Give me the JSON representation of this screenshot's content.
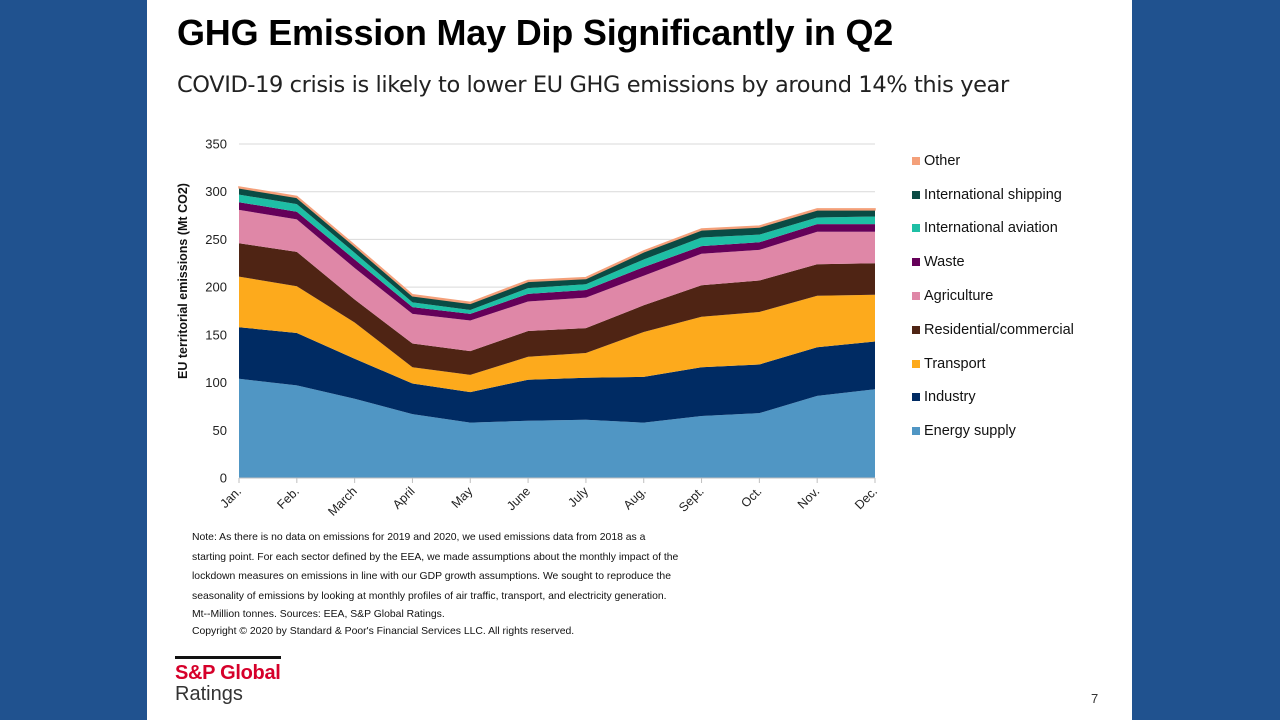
{
  "slide": {
    "title": "GHG Emission May Dip Significantly in Q2",
    "subtitle": "COVID-19 crisis is likely to lower EU GHG emissions by around 14% this year",
    "notes": [
      "Note: As there is no data on emissions for 2019 and 2020, we used emissions data from 2018 as a",
      "starting point. For each sector defined by the EEA, we made assumptions about the monthly impact of the",
      "lockdown measures on emissions in line with our GDP growth assumptions. We sought to reproduce the",
      "seasonality of emissions by looking at monthly profiles of air traffic, transport, and electricity generation.",
      "Mt--Million tonnes. Sources: EEA, S&P Global Ratings.",
      "Copyright © 2020 by Standard & Poor's Financial Services LLC. All rights reserved."
    ],
    "logo_line1": "S&P Global",
    "logo_line2": "Ratings",
    "page_number": "7",
    "background_color": "#20528f",
    "logo_color": "#d6002a"
  },
  "chart_data": {
    "type": "area",
    "stacked": true,
    "title": "",
    "xlabel": "",
    "ylabel": "EU territorial emissions (Mt CO2)",
    "ylim": [
      0,
      350
    ],
    "yticks": [
      0,
      50,
      100,
      150,
      200,
      250,
      300,
      350
    ],
    "grid": true,
    "legend_position": "right",
    "categories": [
      "Jan.",
      "Feb.",
      "March",
      "April",
      "May",
      "June",
      "July",
      "Aug.",
      "Sept.",
      "Oct.",
      "Nov.",
      "Dec."
    ],
    "series": [
      {
        "name": "Energy supply",
        "color": "#5096c4",
        "values": [
          104,
          97,
          83,
          67,
          58,
          60,
          61,
          58,
          65,
          68,
          86,
          93
        ]
      },
      {
        "name": "Industry",
        "color": "#002b63",
        "values": [
          54,
          55,
          42,
          32,
          32,
          43,
          44,
          48,
          51,
          51,
          51,
          50
        ]
      },
      {
        "name": "Transport",
        "color": "#fdaa1c",
        "values": [
          53,
          49,
          38,
          17,
          18,
          24,
          26,
          47,
          53,
          55,
          54,
          49
        ]
      },
      {
        "name": "Residential/commercial",
        "color": "#4f2414",
        "values": [
          35,
          36,
          24,
          25,
          25,
          27,
          26,
          28,
          33,
          33,
          33,
          33
        ]
      },
      {
        "name": "Agriculture",
        "color": "#df87a7",
        "values": [
          35,
          34,
          33,
          31,
          32,
          31,
          32,
          31,
          33,
          32,
          34,
          33
        ]
      },
      {
        "name": "Waste",
        "color": "#650059",
        "values": [
          8,
          8,
          9,
          7,
          7,
          8,
          8,
          9,
          8,
          8,
          8,
          8
        ]
      },
      {
        "name": "International aviation",
        "color": "#1ebfa5",
        "values": [
          8,
          8,
          7,
          5,
          4,
          6,
          6,
          8,
          9,
          8,
          7,
          8
        ]
      },
      {
        "name": "International shipping",
        "color": "#0a4b44",
        "values": [
          7,
          7,
          7,
          7,
          7,
          7,
          6,
          8,
          8,
          8,
          8,
          7
        ]
      },
      {
        "name": "Other",
        "color": "#f4a07a",
        "values": [
          1,
          1,
          1,
          1,
          1,
          1,
          1,
          1,
          1,
          1,
          1,
          1
        ]
      }
    ]
  }
}
